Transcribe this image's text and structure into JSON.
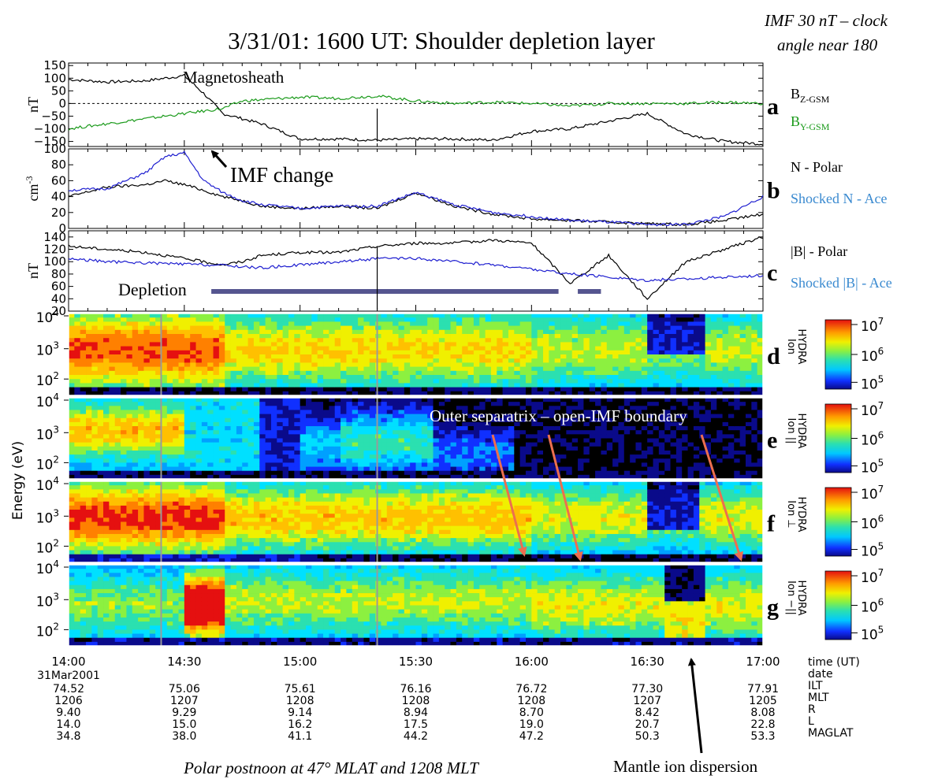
{
  "title": "3/31/01: 1600 UT: Shoulder depletion layer",
  "corner_note": [
    "IMF 30 nT – clock",
    "angle near 180"
  ],
  "footer_caption": "Polar postnoon at 47° MLAT and 1208 MLT",
  "annotations": {
    "magnetosheath": "Magnetosheath",
    "imf_change": "IMF change",
    "depletion": "Depletion",
    "outer_separatrix": "Outer separatrix – open-IMF boundary",
    "mantle": "Mantle ion dispersion"
  },
  "colors": {
    "black_trace": "#000000",
    "green_trace": "#1a9a1a",
    "blue_trace": "#1f1fd0",
    "legend_blue": "#3a8ad0",
    "depletion_bar": "#55558f",
    "arrow_orange": "#ec6f4f"
  },
  "chart_data": [
    {
      "type": "line",
      "panel": "a",
      "ylabel": "nT",
      "ylim": [
        -170,
        160
      ],
      "yticks": [
        "150",
        "100",
        "50",
        "0",
        "−50",
        "−100",
        "−150"
      ],
      "reference_line": 0,
      "x": [
        840,
        850,
        860,
        870,
        875,
        880,
        885,
        890,
        900,
        910,
        920,
        930,
        940,
        950,
        960,
        970,
        980,
        990,
        1000,
        1010,
        1020
      ],
      "series": [
        {
          "name": "BZ-GSM",
          "color": "#000000",
          "values": [
            95,
            85,
            90,
            110,
            40,
            -40,
            -60,
            -80,
            -140,
            -140,
            -145,
            -140,
            -140,
            -145,
            -110,
            -100,
            -70,
            -40,
            -120,
            -150,
            -160
          ]
        },
        {
          "name": "BY-GSM",
          "color": "#1a9a1a",
          "values": [
            -100,
            -80,
            -60,
            -40,
            -30,
            -20,
            10,
            15,
            25,
            20,
            30,
            10,
            0,
            5,
            0,
            -10,
            0,
            0,
            0,
            5,
            0
          ]
        }
      ]
    },
    {
      "type": "line",
      "panel": "b",
      "ylabel": "cm-3",
      "ylim": [
        0,
        100
      ],
      "yticks": [
        "100",
        "80",
        "60",
        "40",
        "20",
        "0"
      ],
      "x": [
        840,
        850,
        860,
        865,
        870,
        875,
        880,
        885,
        890,
        900,
        910,
        920,
        930,
        940,
        950,
        960,
        970,
        980,
        990,
        1000,
        1010,
        1020
      ],
      "series": [
        {
          "name": "N - Polar",
          "color": "#000000",
          "values": [
            40,
            52,
            55,
            60,
            55,
            48,
            40,
            35,
            28,
            25,
            28,
            25,
            45,
            28,
            18,
            12,
            10,
            8,
            6,
            5,
            10,
            18
          ]
        },
        {
          "name": "Shocked N - Ace",
          "color": "#1f1fd0",
          "values": [
            48,
            50,
            70,
            90,
            95,
            60,
            45,
            35,
            30,
            25,
            28,
            28,
            45,
            30,
            20,
            15,
            10,
            8,
            5,
            5,
            15,
            40
          ]
        }
      ]
    },
    {
      "type": "line",
      "panel": "c",
      "ylabel": "nT",
      "ylim": [
        20,
        150
      ],
      "yticks": [
        "140",
        "120",
        "100",
        "80",
        "60",
        "40",
        "20"
      ],
      "x": [
        840,
        850,
        860,
        870,
        880,
        885,
        890,
        900,
        910,
        920,
        930,
        940,
        950,
        960,
        970,
        980,
        990,
        1000,
        1010,
        1020
      ],
      "series": [
        {
          "name": "|B| - Polar",
          "color": "#000000",
          "values": [
            125,
            120,
            115,
            105,
            95,
            100,
            110,
            115,
            115,
            125,
            130,
            130,
            135,
            130,
            65,
            110,
            40,
            100,
            120,
            140
          ]
        },
        {
          "name": "Shocked |B| - Ace",
          "color": "#1f1fd0",
          "values": [
            105,
            100,
            98,
            96,
            94,
            92,
            90,
            95,
            100,
            105,
            105,
            100,
            95,
            88,
            80,
            75,
            70,
            72,
            75,
            78
          ]
        }
      ],
      "depletion_intervals": [
        [
          877,
          967
        ],
        [
          972,
          978
        ]
      ]
    },
    {
      "type": "heatmap",
      "panel": "d",
      "label": [
        "HYDRA",
        "Ion"
      ],
      "colorbar_ticks": [
        "10",
        "10",
        "10"
      ],
      "colorbar_exponents": [
        "7",
        "6",
        "5"
      ],
      "y_ticks": [
        "10",
        "10",
        "10"
      ],
      "y_exponents": [
        "4",
        "3",
        "2"
      ]
    },
    {
      "type": "heatmap",
      "panel": "e",
      "label": [
        "HYDRA",
        "Ion ||"
      ],
      "colorbar_ticks": [
        "10",
        "10",
        "10"
      ],
      "colorbar_exponents": [
        "7",
        "6",
        "5"
      ],
      "y_ticks": [
        "10",
        "10",
        "10"
      ],
      "y_exponents": [
        "4",
        "3",
        "2"
      ]
    },
    {
      "type": "heatmap",
      "panel": "f",
      "label": [
        "HYDRA",
        "Ion ⊥"
      ],
      "colorbar_ticks": [
        "10",
        "10",
        "10"
      ],
      "colorbar_exponents": [
        "7",
        "6",
        "5"
      ],
      "y_ticks": [
        "10",
        "10",
        "10"
      ],
      "y_exponents": [
        "4",
        "3",
        "2"
      ]
    },
    {
      "type": "heatmap",
      "panel": "g",
      "label": [
        "HYDRA",
        "Ion −||"
      ],
      "colorbar_ticks": [
        "10",
        "10",
        "10"
      ],
      "colorbar_exponents": [
        "7",
        "6",
        "5"
      ],
      "y_ticks": [
        "10",
        "10",
        "10"
      ],
      "y_exponents": [
        "4",
        "3",
        "2"
      ]
    }
  ],
  "shared_y_label": "Energy (eV)",
  "x_axis": {
    "tick_labels": [
      "14:00",
      "14:30",
      "15:00",
      "15:30",
      "16:00",
      "16:30",
      "17:00"
    ],
    "date_label": "31Mar2001",
    "rows": [
      {
        "name": "ILT",
        "values": [
          "74.52",
          "75.06",
          "75.61",
          "76.16",
          "76.72",
          "77.30",
          "77.91"
        ]
      },
      {
        "name": "MLT",
        "values": [
          "1206",
          "1207",
          "1208",
          "1208",
          "1208",
          "1207",
          "1205"
        ]
      },
      {
        "name": "R",
        "values": [
          "9.40",
          "9.29",
          "9.14",
          "8.94",
          "8.70",
          "8.42",
          "8.08"
        ]
      },
      {
        "name": "L",
        "values": [
          "14.0",
          "15.0",
          "16.2",
          "17.5",
          "19.0",
          "20.7",
          "22.8"
        ]
      },
      {
        "name": "MAGLAT",
        "values": [
          "34.8",
          "38.0",
          "41.1",
          "44.2",
          "47.2",
          "50.3",
          "53.3"
        ]
      }
    ],
    "right_labels": [
      "time (UT)",
      "date",
      "ILT",
      "MLT",
      "R",
      "L",
      "MAGLAT"
    ]
  },
  "panel_letters": [
    "a",
    "b",
    "c",
    "d",
    "e",
    "f",
    "g"
  ],
  "legend_a": {
    "bz": "B",
    "bz_sub": "Z-GSM",
    "by": "B",
    "by_sub": "Y-GSM"
  },
  "legend_b": {
    "black": "N - Polar",
    "blue": "Shocked N - Ace"
  },
  "legend_c": {
    "black": "|B| - Polar",
    "blue": "Shocked |B| - Ace"
  },
  "ylabel_b_sup": "-3"
}
